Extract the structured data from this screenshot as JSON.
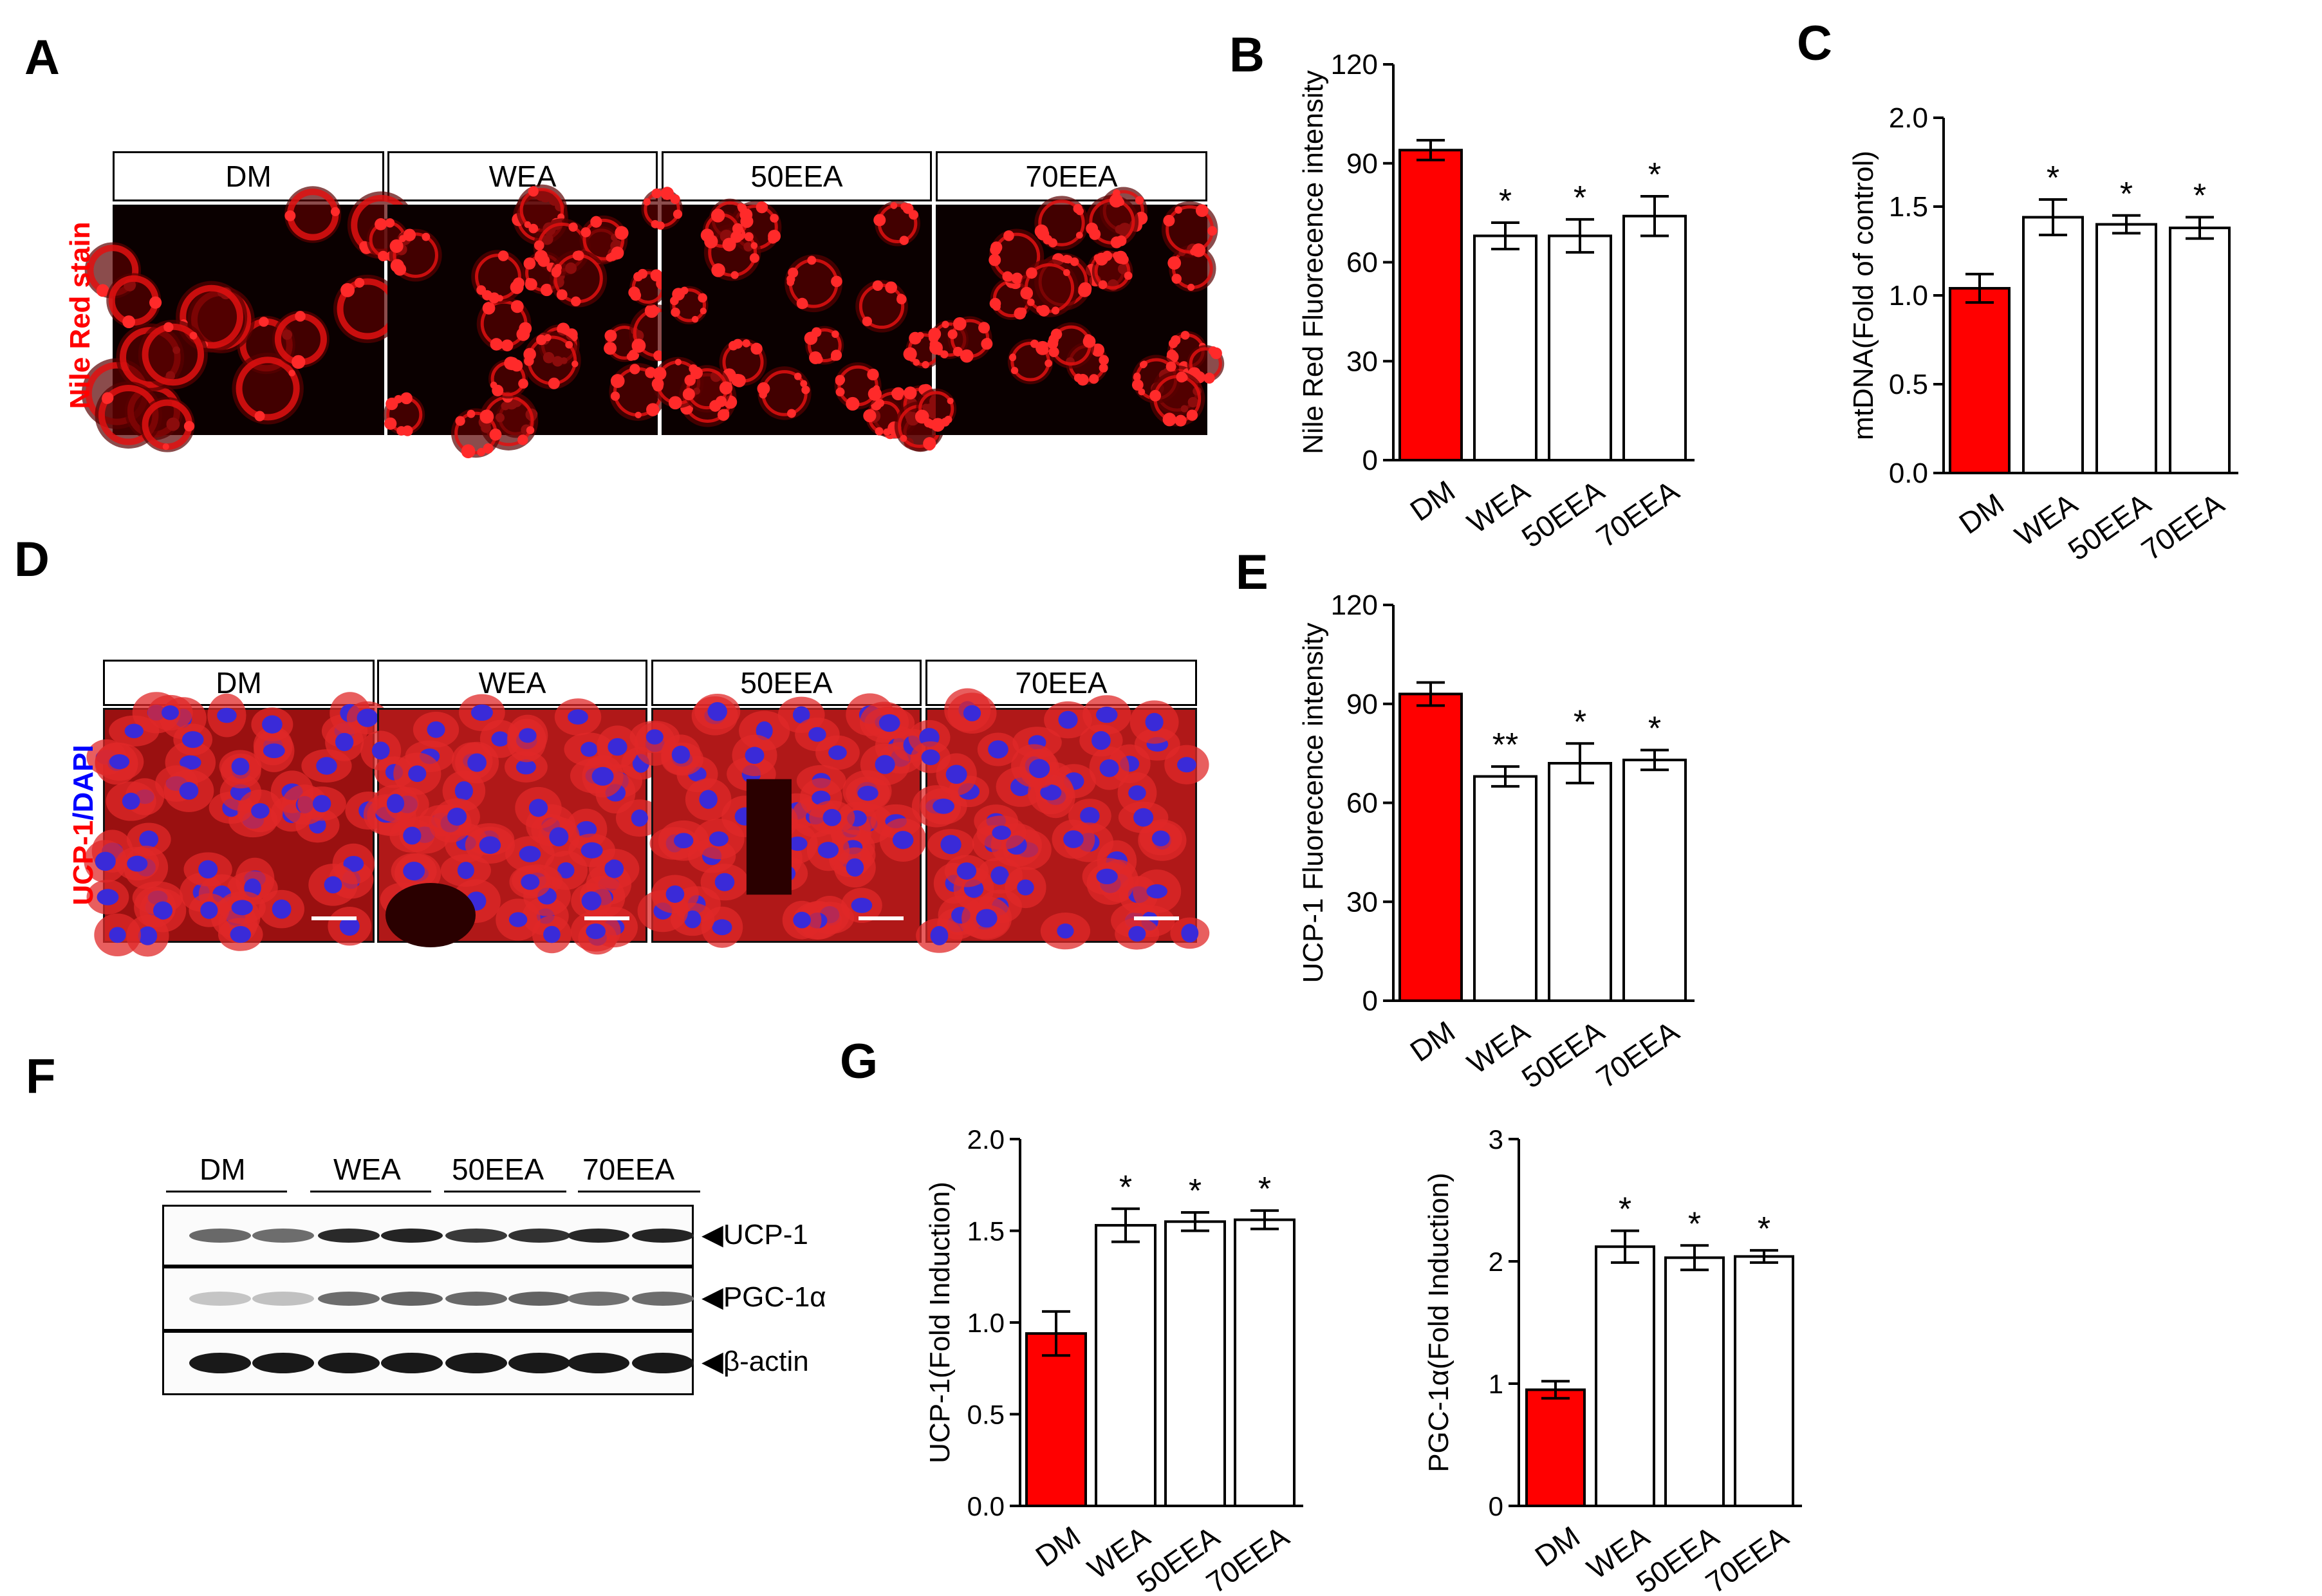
{
  "panels": {
    "a": "A",
    "b": "B",
    "c": "C",
    "d": "D",
    "e": "E",
    "f": "F",
    "g": "G"
  },
  "groups": [
    "DM",
    "WEA",
    "50EEA",
    "70EEA"
  ],
  "panel_a": {
    "stain_label": "Nile Red stain",
    "stain_color": "#ff0000"
  },
  "panel_d": {
    "stain_label_red": "UCP-1",
    "stain_label_sep": "/",
    "stain_label_blue": "DAPI",
    "red": "#ff0000",
    "blue": "#0000ff"
  },
  "panel_f": {
    "lane_groups": [
      "DM",
      "WEA",
      "50EEA",
      "70EEA"
    ],
    "rows": [
      {
        "label": "◀UCP-1",
        "intensity": [
          0.62,
          0.6,
          0.92,
          0.95,
          0.85,
          0.88,
          0.94,
          0.95
        ]
      },
      {
        "label": "◀PGC-1α",
        "intensity": [
          0.18,
          0.2,
          0.6,
          0.65,
          0.62,
          0.65,
          0.58,
          0.6
        ]
      },
      {
        "label": "◀β-actin",
        "intensity": [
          1,
          1,
          1,
          1,
          1,
          1,
          1,
          1
        ]
      }
    ]
  },
  "colors": {
    "control_bar": "#ff0000",
    "treatment_bar": "#ffffff",
    "axis": "#000000"
  },
  "chart_data": [
    {
      "id": "B",
      "type": "bar",
      "categories": [
        "DM",
        "WEA",
        "50EEA",
        "70EEA"
      ],
      "values": [
        94,
        68,
        68,
        74
      ],
      "errors": [
        3,
        4,
        5,
        6
      ],
      "significance": [
        "",
        "*",
        "*",
        "*"
      ],
      "ylabel": "Nile Red Fluorecence intensity",
      "ylim": [
        0,
        120
      ],
      "yticks": [
        0,
        30,
        60,
        90,
        120
      ],
      "yticklabels": [
        "0",
        "30",
        "60",
        "90",
        "120"
      ],
      "bar_colors": [
        "#ff0000",
        "#ffffff",
        "#ffffff",
        "#ffffff"
      ]
    },
    {
      "id": "C",
      "type": "bar",
      "categories": [
        "DM",
        "WEA",
        "50EEA",
        "70EEA"
      ],
      "values": [
        1.04,
        1.44,
        1.4,
        1.38
      ],
      "errors": [
        0.08,
        0.1,
        0.05,
        0.06
      ],
      "significance": [
        "",
        "*",
        "*",
        "*"
      ],
      "ylabel": "mtDNA(Fold of control)",
      "ylim": [
        0,
        2
      ],
      "yticks": [
        0,
        0.5,
        1,
        1.5,
        2
      ],
      "yticklabels": [
        "0.0",
        "0.5",
        "1.0",
        "1.5",
        "2.0"
      ],
      "bar_colors": [
        "#ff0000",
        "#ffffff",
        "#ffffff",
        "#ffffff"
      ]
    },
    {
      "id": "E",
      "type": "bar",
      "categories": [
        "DM",
        "WEA",
        "50EEA",
        "70EEA"
      ],
      "values": [
        93,
        68,
        72,
        73
      ],
      "errors": [
        3.5,
        3,
        6,
        3
      ],
      "significance": [
        "",
        "**",
        "*",
        "*"
      ],
      "ylabel": "UCP-1 Fluorecence intensity",
      "ylim": [
        0,
        120
      ],
      "yticks": [
        0,
        30,
        60,
        90,
        120
      ],
      "yticklabels": [
        "0",
        "30",
        "60",
        "90",
        "120"
      ],
      "bar_colors": [
        "#ff0000",
        "#ffffff",
        "#ffffff",
        "#ffffff"
      ]
    },
    {
      "id": "G1",
      "type": "bar",
      "categories": [
        "DM",
        "WEA",
        "50EEA",
        "70EEA"
      ],
      "values": [
        0.94,
        1.53,
        1.55,
        1.56
      ],
      "errors": [
        0.12,
        0.09,
        0.05,
        0.05
      ],
      "significance": [
        "",
        "*",
        "*",
        "*"
      ],
      "ylabel": "UCP-1(Fold Induction)",
      "ylim": [
        0,
        2
      ],
      "yticks": [
        0,
        0.5,
        1,
        1.5,
        2
      ],
      "yticklabels": [
        "0.0",
        "0.5",
        "1.0",
        "1.5",
        "2.0"
      ],
      "bar_colors": [
        "#ff0000",
        "#ffffff",
        "#ffffff",
        "#ffffff"
      ]
    },
    {
      "id": "G2",
      "type": "bar",
      "categories": [
        "DM",
        "WEA",
        "50EEA",
        "70EEA"
      ],
      "values": [
        0.95,
        2.12,
        2.03,
        2.04
      ],
      "errors": [
        0.07,
        0.13,
        0.1,
        0.05
      ],
      "significance": [
        "",
        "*",
        "*",
        "*"
      ],
      "ylabel": "PGC-1α(Fold Induction)",
      "ylim": [
        0,
        3
      ],
      "yticks": [
        0,
        1,
        2,
        3
      ],
      "yticklabels": [
        "0",
        "1",
        "2",
        "3"
      ],
      "bar_colors": [
        "#ff0000",
        "#ffffff",
        "#ffffff",
        "#ffffff"
      ]
    }
  ]
}
